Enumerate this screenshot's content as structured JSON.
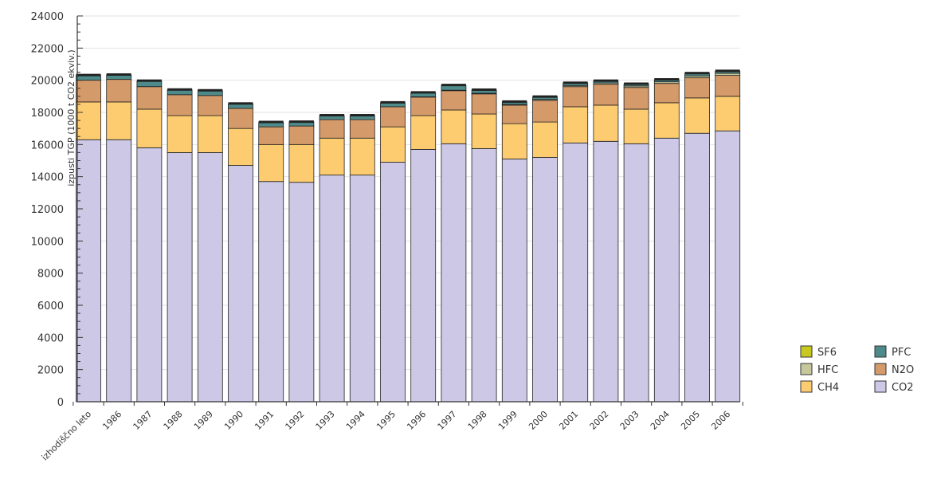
{
  "chart_data": {
    "type": "bar",
    "stacked": true,
    "title": "",
    "xlabel": "",
    "ylabel": "izpusti TGP (1000 t CO2 ekviv.)",
    "ylim": [
      0,
      24000
    ],
    "yticks": [
      "0",
      "2000",
      "4000",
      "6000",
      "8000",
      "10000",
      "12000",
      "14000",
      "16000",
      "18000",
      "20000",
      "22000",
      "24000"
    ],
    "grid": "horizontal",
    "legend_position": "bottom-right",
    "categories": [
      "izhodiščno leto",
      "1986",
      "1987",
      "1988",
      "1989",
      "1990",
      "1991",
      "1992",
      "1993",
      "1994",
      "1995",
      "1996",
      "1997",
      "1998",
      "1999",
      "2000",
      "2001",
      "2002",
      "2003",
      "2004",
      "2005",
      "2006"
    ],
    "series": [
      {
        "name": "CO2",
        "color": "#ccc8e6",
        "values": [
          16300,
          16300,
          15800,
          15500,
          15500,
          14700,
          13700,
          13650,
          14100,
          14100,
          14900,
          15700,
          16050,
          15750,
          15100,
          15200,
          16100,
          16200,
          16050,
          16400,
          16700,
          16850
        ]
      },
      {
        "name": "CH4",
        "color": "#fdcc70",
        "values": [
          2350,
          2350,
          2400,
          2300,
          2300,
          2300,
          2300,
          2350,
          2300,
          2300,
          2200,
          2100,
          2100,
          2150,
          2200,
          2200,
          2250,
          2250,
          2150,
          2200,
          2200,
          2150
        ]
      },
      {
        "name": "N2O",
        "color": "#d49a6a",
        "values": [
          1350,
          1400,
          1400,
          1300,
          1250,
          1250,
          1100,
          1150,
          1150,
          1150,
          1250,
          1150,
          1200,
          1250,
          1150,
          1350,
          1250,
          1300,
          1350,
          1200,
          1250,
          1300
        ]
      },
      {
        "name": "HFC",
        "color": "#c6c79a",
        "values": [
          0,
          0,
          0,
          0,
          0,
          0,
          0,
          0,
          0,
          0,
          0,
          20,
          30,
          40,
          50,
          60,
          70,
          80,
          90,
          100,
          120,
          130
        ]
      },
      {
        "name": "PFC",
        "color": "#4e8a8a",
        "values": [
          300,
          280,
          350,
          300,
          300,
          280,
          280,
          250,
          250,
          250,
          250,
          250,
          300,
          200,
          150,
          150,
          150,
          120,
          120,
          130,
          150,
          130
        ]
      },
      {
        "name": "SF6",
        "color": "#c8c81e",
        "values": [
          0,
          0,
          0,
          0,
          0,
          0,
          0,
          0,
          0,
          0,
          0,
          0,
          0,
          0,
          0,
          0,
          0,
          0,
          0,
          0,
          0,
          0
        ]
      }
    ],
    "legend_order": [
      "SF6",
      "PFC",
      "HFC",
      "N2O",
      "CH4",
      "CO2"
    ]
  }
}
